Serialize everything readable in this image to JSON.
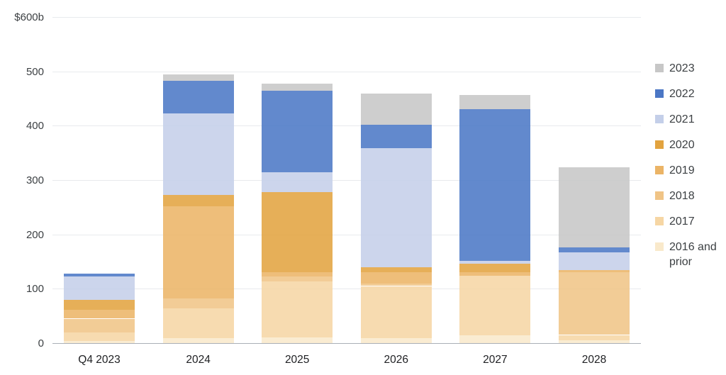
{
  "chart_data": {
    "type": "bar",
    "subtype": "stacked-vertical",
    "title": "",
    "xlabel": "",
    "ylabel": "$ billions",
    "categories": [
      "Q4 2023",
      "2024",
      "2025",
      "2026",
      "2027",
      "2028"
    ],
    "series": [
      {
        "name": "2016 and prior",
        "color": "#f9e9cb",
        "values": [
          4,
          9,
          10,
          9,
          14,
          5
        ]
      },
      {
        "name": "2017",
        "color": "#f6d6a4",
        "values": [
          15,
          55,
          103,
          96,
          110,
          10
        ]
      },
      {
        "name": "2018",
        "color": "#f0c486",
        "values": [
          26,
          18,
          10,
          4,
          0,
          116
        ]
      },
      {
        "name": "2019",
        "color": "#ebb466",
        "values": [
          16,
          170,
          7,
          22,
          6,
          3
        ]
      },
      {
        "name": "2020",
        "color": "#e2a33f",
        "values": [
          18,
          20,
          148,
          8,
          16,
          0
        ]
      },
      {
        "name": "2021",
        "color": "#c4cfe9",
        "values": [
          43,
          150,
          36,
          220,
          5,
          33
        ]
      },
      {
        "name": "2022",
        "color": "#4b77c5",
        "values": [
          6,
          60,
          150,
          43,
          279,
          9
        ]
      },
      {
        "name": "2023",
        "color": "#c7c7c7",
        "values": [
          0,
          12,
          14,
          57,
          26,
          148
        ]
      }
    ],
    "totals": [
      128,
      494,
      478,
      459,
      456,
      324
    ],
    "y_axis": {
      "min": 0,
      "max": 600,
      "tick_step": 100,
      "tick_labels": [
        "0",
        "100",
        "200",
        "300",
        "400",
        "500",
        "$600b"
      ],
      "top_label": "$600b"
    },
    "legend": {
      "position": "right",
      "items": [
        {
          "label": "2023",
          "color": "#c7c7c7"
        },
        {
          "label": "2022",
          "color": "#4b77c5"
        },
        {
          "label": "2021",
          "color": "#c4cfe9"
        },
        {
          "label": "2020",
          "color": "#e2a33f"
        },
        {
          "label": "2019",
          "color": "#ebb466"
        },
        {
          "label": "2018",
          "color": "#f0c486"
        },
        {
          "label": "2017",
          "color": "#f6d6a4"
        },
        {
          "label": "2016 and prior",
          "color": "#f9e9cb"
        }
      ]
    },
    "grid": true,
    "legend_position": "right"
  }
}
